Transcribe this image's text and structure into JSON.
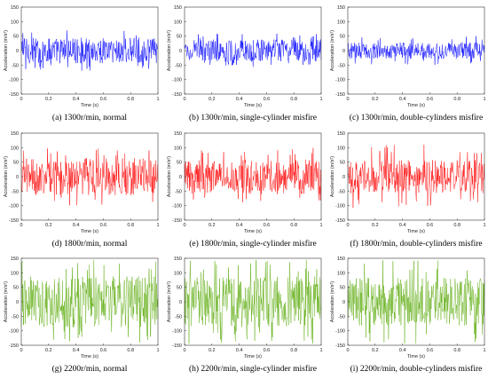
{
  "figure": {
    "colors": {
      "blue": "#0000ff",
      "red": "#ff0000",
      "green": "#5aaa0a"
    }
  },
  "chart_data": [
    {
      "type": "line",
      "caption": "(a) 1300r/min, normal",
      "xlabel": "Time (s)",
      "ylabel": "Acceleration (m/s²)",
      "xlim": [
        0,
        1
      ],
      "ylim": [
        -150,
        150
      ],
      "xticks": [
        "0",
        "0.2",
        "0.4",
        "0.6",
        "0.8",
        "1"
      ],
      "yticks": [
        "150",
        "100",
        "50",
        "0",
        "-50",
        "-100",
        "-150"
      ],
      "color": "blue",
      "amplitude_peak": 70,
      "amplitude_typical": 28
    },
    {
      "type": "line",
      "caption": "(b) 1300r/min, single-cylinder misfire",
      "xlabel": "Time (s)",
      "ylabel": "Acceleration (m/s²)",
      "xlim": [
        0,
        1
      ],
      "ylim": [
        -150,
        150
      ],
      "xticks": [
        "0",
        "0.2",
        "0.4",
        "0.6",
        "0.8",
        "1"
      ],
      "yticks": [
        "150",
        "100",
        "50",
        "0",
        "-50",
        "-100",
        "-150"
      ],
      "color": "blue",
      "amplitude_peak": 60,
      "amplitude_typical": 24
    },
    {
      "type": "line",
      "caption": "(c) 1300r/min, double-cylinders misfire",
      "xlabel": "Time (s)",
      "ylabel": "Acceleration (m/s²)",
      "xlim": [
        0,
        1
      ],
      "ylim": [
        -150,
        150
      ],
      "xticks": [
        "0",
        "0.2",
        "0.4",
        "0.6",
        "0.8",
        "1"
      ],
      "yticks": [
        "150",
        "100",
        "50",
        "0",
        "-50",
        "-100",
        "-150"
      ],
      "color": "blue",
      "amplitude_peak": 50,
      "amplitude_typical": 18
    },
    {
      "type": "line",
      "caption": "(d) 1800r/min, normal",
      "xlabel": "Time (s)",
      "ylabel": "Acceleration (m/s²)",
      "xlim": [
        0,
        1
      ],
      "ylim": [
        -150,
        150
      ],
      "xticks": [
        "0",
        "0.2",
        "0.4",
        "0.6",
        "0.8",
        "1"
      ],
      "yticks": [
        "150",
        "100",
        "50",
        "0",
        "-50",
        "-100",
        "-150"
      ],
      "color": "red",
      "amplitude_peak": 100,
      "amplitude_typical": 40
    },
    {
      "type": "line",
      "caption": "(e) 1800r/min, single-cylinder misfire",
      "xlabel": "Time (s)",
      "ylabel": "Acceleration (m/s²)",
      "xlim": [
        0,
        1
      ],
      "ylim": [
        -150,
        150
      ],
      "xticks": [
        "0",
        "0.2",
        "0.4",
        "0.6",
        "0.8",
        "1"
      ],
      "yticks": [
        "150",
        "100",
        "50",
        "0",
        "-50",
        "-100",
        "-150"
      ],
      "color": "red",
      "amplitude_peak": 100,
      "amplitude_typical": 38
    },
    {
      "type": "line",
      "caption": "(f) 1800r/min, double-cylinders misfire",
      "xlabel": "Time (s)",
      "ylabel": "Acceleration (m/s²)",
      "xlim": [
        0,
        1
      ],
      "ylim": [
        -150,
        150
      ],
      "xticks": [
        "0",
        "0.2",
        "0.4",
        "0.6",
        "0.8",
        "1"
      ],
      "yticks": [
        "150",
        "100",
        "50",
        "0",
        "-50",
        "-100",
        "-150"
      ],
      "color": "red",
      "amplitude_peak": 110,
      "amplitude_typical": 36
    },
    {
      "type": "line",
      "caption": "(g) 2200r/min, normal",
      "xlabel": "Time (s)",
      "ylabel": "Acceleration (m/s²)",
      "xlim": [
        0,
        1
      ],
      "ylim": [
        -150,
        150
      ],
      "xticks": [
        "0",
        "0.2",
        "0.4",
        "0.6",
        "0.8",
        "1"
      ],
      "yticks": [
        "150",
        "100",
        "50",
        "0",
        "-50",
        "-100",
        "-150"
      ],
      "color": "green",
      "amplitude_peak": 145,
      "amplitude_typical": 55
    },
    {
      "type": "line",
      "caption": "(h) 2200r/min, single-cylinder misfire",
      "xlabel": "Time (s)",
      "ylabel": "Acceleration (m/s²)",
      "xlim": [
        0,
        1
      ],
      "ylim": [
        -150,
        150
      ],
      "xticks": [
        "0",
        "0.2",
        "0.4",
        "0.6",
        "0.8",
        "1"
      ],
      "yticks": [
        "150",
        "100",
        "50",
        "0",
        "-50",
        "-100",
        "-150"
      ],
      "color": "green",
      "amplitude_peak": 145,
      "amplitude_typical": 55
    },
    {
      "type": "line",
      "caption": "(i) 2200r/min, double-cylinders misfire",
      "xlabel": "Time (s)",
      "ylabel": "Acceleration (m/s²)",
      "xlim": [
        0,
        1
      ],
      "ylim": [
        -150,
        150
      ],
      "xticks": [
        "0",
        "0.2",
        "0.4",
        "0.6",
        "0.8",
        "1"
      ],
      "yticks": [
        "150",
        "100",
        "50",
        "0",
        "-50",
        "-100",
        "-150"
      ],
      "color": "green",
      "amplitude_peak": 145,
      "amplitude_typical": 52
    }
  ]
}
